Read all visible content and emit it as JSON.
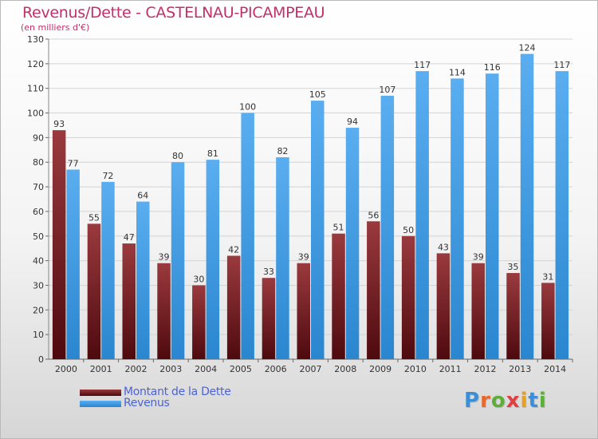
{
  "header": {
    "title": "Revenus/Dette - CASTELNAU-PICAMPEAU",
    "subtitle": "(en milliers d'€)"
  },
  "chart_data": {
    "type": "bar",
    "categories": [
      "2000",
      "2001",
      "2002",
      "2003",
      "2004",
      "2005",
      "2006",
      "2007",
      "2008",
      "2009",
      "2010",
      "2011",
      "2012",
      "2013",
      "2014"
    ],
    "series": [
      {
        "name": "Montant de la Dette",
        "color": "#7a1f24",
        "values": [
          93,
          55,
          47,
          39,
          30,
          42,
          33,
          39,
          51,
          56,
          50,
          43,
          39,
          35,
          31
        ]
      },
      {
        "name": "Revenus",
        "color": "#3d9be0",
        "values": [
          77,
          72,
          64,
          80,
          81,
          100,
          82,
          105,
          94,
          107,
          117,
          114,
          116,
          124,
          117
        ]
      }
    ],
    "ylim": [
      0,
      130
    ],
    "yticks": [
      0,
      10,
      20,
      30,
      40,
      50,
      60,
      70,
      80,
      90,
      100,
      110,
      120,
      130
    ],
    "grid": true,
    "legend": "bottom-left"
  },
  "logo": {
    "letters": [
      "P",
      "r",
      "o",
      "x",
      "i",
      "t",
      "i"
    ],
    "colors": [
      "#3a8fd8",
      "#e8692a",
      "#5cb038",
      "#e04040",
      "#e8a020",
      "#3a8fd8",
      "#5cb038"
    ]
  }
}
